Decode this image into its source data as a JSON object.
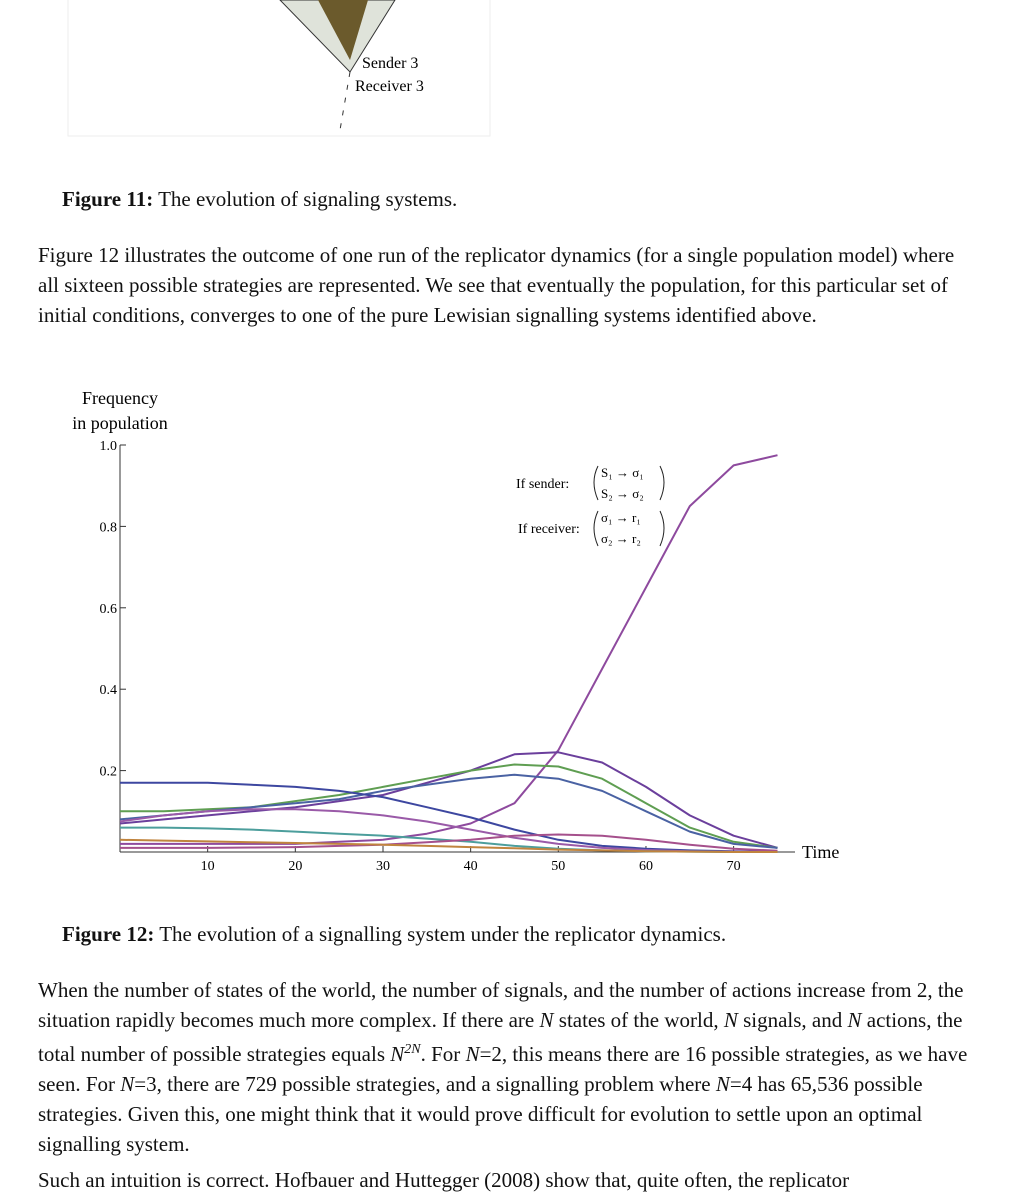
{
  "figure_top": {
    "labels": [
      "Sender 3",
      "Receiver 3"
    ]
  },
  "figure_11_caption": {
    "label": "Figure 11:",
    "text": " The evolution of signaling systems."
  },
  "paragraph_1": "Figure 12 illustrates the outcome of one run of the replicator dynamics (for a single population model) where all sixteen possible strategies are represented. We see that eventually the population, for this particular set of initial conditions, converges to one of the pure Lewisian signalling systems identified above.",
  "chart_data": {
    "type": "line",
    "y_label": [
      "Frequency",
      "in population"
    ],
    "x_label": "Time",
    "annotations": {
      "sender": "If sender:",
      "sender_rows": [
        "S₁ → σ₁",
        "S₂ → σ₂"
      ],
      "receiver": "If receiver:",
      "receiver_rows": [
        "σ₁ → r₁",
        "σ₂ → r₂"
      ]
    },
    "x": [
      0,
      5,
      10,
      15,
      20,
      25,
      30,
      35,
      40,
      45,
      50,
      55,
      60,
      65,
      70,
      75
    ],
    "xlim": [
      0,
      77
    ],
    "ylim": [
      0,
      1
    ],
    "xticks": [
      10,
      20,
      30,
      40,
      50,
      60,
      70
    ],
    "yticks": [
      0.2,
      0.4,
      0.6,
      0.8,
      {
        "value": 1,
        "label": "1.0"
      }
    ],
    "series": [
      {
        "color": "#8e4a9e",
        "values": [
          0.02,
          0.02,
          0.02,
          0.02,
          0.02,
          0.025,
          0.03,
          0.045,
          0.07,
          0.12,
          0.25,
          0.45,
          0.65,
          0.85,
          0.95,
          0.975
        ]
      },
      {
        "color": "#6b3f9c",
        "values": [
          0.07,
          0.08,
          0.09,
          0.1,
          0.11,
          0.125,
          0.14,
          0.17,
          0.2,
          0.24,
          0.245,
          0.22,
          0.16,
          0.09,
          0.04,
          0.01
        ]
      },
      {
        "color": "#5f9e52",
        "values": [
          0.1,
          0.1,
          0.105,
          0.11,
          0.125,
          0.14,
          0.16,
          0.18,
          0.2,
          0.215,
          0.21,
          0.18,
          0.12,
          0.06,
          0.025,
          0.01
        ]
      },
      {
        "color": "#4a62a3",
        "values": [
          0.08,
          0.09,
          0.1,
          0.11,
          0.12,
          0.13,
          0.15,
          0.165,
          0.18,
          0.19,
          0.18,
          0.15,
          0.1,
          0.05,
          0.02,
          0.01
        ]
      },
      {
        "color": "#3d47a0",
        "values": [
          0.17,
          0.17,
          0.17,
          0.165,
          0.16,
          0.15,
          0.135,
          0.11,
          0.085,
          0.055,
          0.03,
          0.015,
          0.008,
          0.004,
          0.002,
          0.001
        ]
      },
      {
        "color": "#9a5aa8",
        "values": [
          0.075,
          0.09,
          0.1,
          0.105,
          0.105,
          0.1,
          0.09,
          0.075,
          0.055,
          0.035,
          0.02,
          0.01,
          0.005,
          0.002,
          0.001,
          0
        ]
      },
      {
        "color": "#4c9e9c",
        "values": [
          0.06,
          0.06,
          0.058,
          0.055,
          0.05,
          0.045,
          0.04,
          0.033,
          0.025,
          0.015,
          0.008,
          0.004,
          0.002,
          0.001,
          0,
          0
        ]
      },
      {
        "color": "#a5508c",
        "values": [
          0.01,
          0.01,
          0.01,
          0.011,
          0.012,
          0.015,
          0.018,
          0.024,
          0.03,
          0.04,
          0.043,
          0.04,
          0.03,
          0.018,
          0.008,
          0.003
        ]
      },
      {
        "color": "#c0843e",
        "values": [
          0.03,
          0.028,
          0.026,
          0.024,
          0.022,
          0.02,
          0.018,
          0.015,
          0.012,
          0.009,
          0.006,
          0.004,
          0.002,
          0.001,
          0,
          0
        ]
      }
    ]
  },
  "figure_12_caption": {
    "label": "Figure 12:",
    "text": " The evolution of a signalling system under the replicator dynamics."
  },
  "paragraph_2": [
    "When the number of states of the world, the number of signals, and the number of actions increase from 2, the situation rapidly becomes much more complex. If there are ",
    "N",
    " states of the world, ",
    "N",
    " signals, and ",
    "N",
    " actions, the total number of possible strategies equals ",
    "N",
    "2N",
    ". For ",
    "N",
    "=2, this means there are 16 possible strategies, as we have seen. For ",
    "N",
    "=3, there are 729 possible strategies, and a signalling problem where ",
    "N",
    "=4 has 65,536 possible strategies. Given this, one might think that it would prove difficult for evolution to settle upon an optimal signalling system."
  ],
  "paragraph_3": "Such an intuition is correct. Hofbauer and Huttegger (2008) show that, quite often, the replicator"
}
